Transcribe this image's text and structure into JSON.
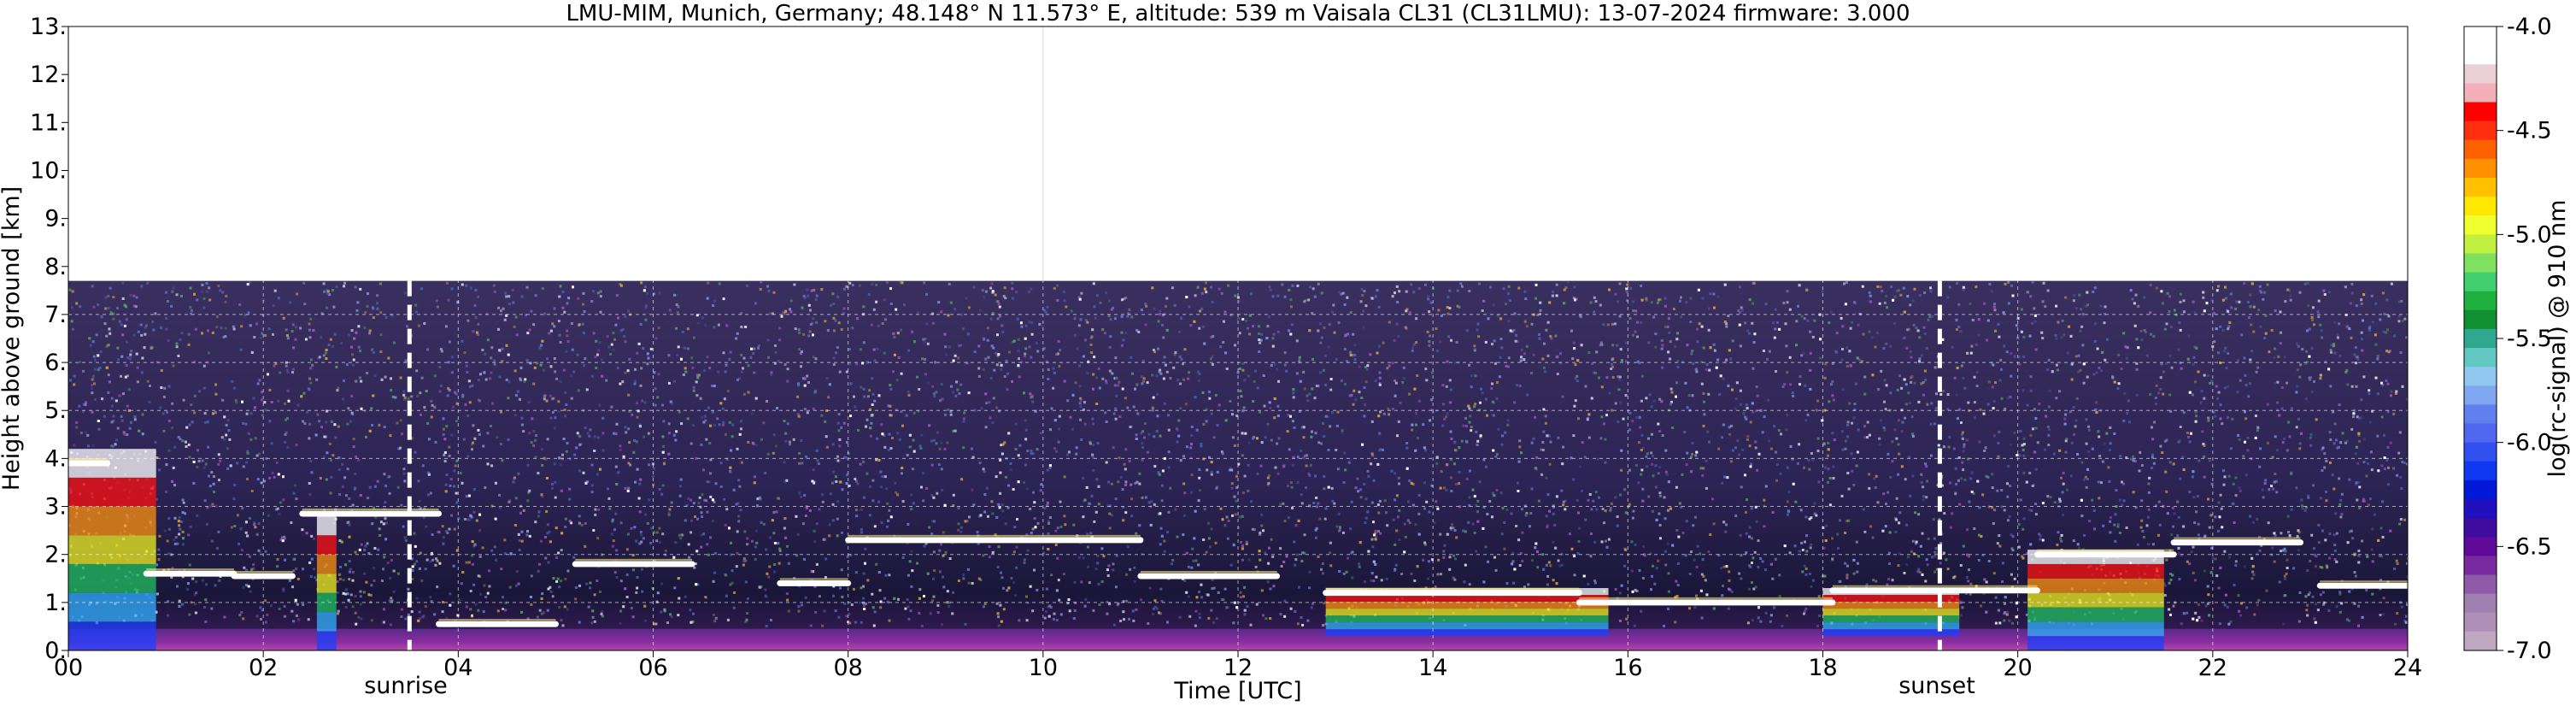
{
  "chart_data": {
    "type": "heatmap",
    "title": "LMU-MIM, Munich, Germany; 48.148° N 11.573° E, altitude: 539 m    Vaisala CL31 (CL31LMU): 13-07-2024    firmware: 3.000",
    "xlabel": "Time [UTC]",
    "ylabel": "Height above ground [km]",
    "xlim": [
      0,
      24
    ],
    "ylim": [
      0,
      13
    ],
    "x_ticks": [
      "00",
      "02",
      "04",
      "06",
      "08",
      "10",
      "12",
      "14",
      "16",
      "18",
      "20",
      "22",
      "24"
    ],
    "y_ticks": [
      "0.",
      "1.",
      "2.",
      "3.",
      "4.",
      "5.",
      "6.",
      "7.",
      "8.",
      "9.",
      "10.",
      "11.",
      "12.",
      "13."
    ],
    "grid": true,
    "data_top_km": 7.7,
    "sunrise": {
      "label": "sunrise",
      "time": 3.5
    },
    "sunset": {
      "label": "sunset",
      "time": 19.2
    },
    "colorbar": {
      "label": "log(rc-signal) @ 910 nm",
      "range": [
        -7.0,
        -4.0
      ],
      "ticks": [
        "-4.0",
        "-4.5",
        "-5.0",
        "-5.5",
        "-6.0",
        "-6.5",
        "-7.0"
      ]
    },
    "cloud_layers": [
      {
        "start": 0.0,
        "end": 0.4,
        "height": 3.9
      },
      {
        "start": 0.8,
        "end": 1.7,
        "height": 1.6
      },
      {
        "start": 1.7,
        "end": 2.3,
        "height": 1.55
      },
      {
        "start": 2.4,
        "end": 3.8,
        "height": 2.85
      },
      {
        "start": 3.8,
        "end": 5.0,
        "height": 0.55
      },
      {
        "start": 5.2,
        "end": 6.4,
        "height": 1.8
      },
      {
        "start": 7.3,
        "end": 8.0,
        "height": 1.4
      },
      {
        "start": 8.0,
        "end": 11.0,
        "height": 2.3
      },
      {
        "start": 11.0,
        "end": 12.4,
        "height": 1.55
      },
      {
        "start": 12.9,
        "end": 15.5,
        "height": 1.2
      },
      {
        "start": 15.5,
        "end": 18.1,
        "height": 1.0
      },
      {
        "start": 18.1,
        "end": 20.2,
        "height": 1.25
      },
      {
        "start": 20.2,
        "end": 21.6,
        "height": 2.0
      },
      {
        "start": 21.6,
        "end": 22.9,
        "height": 2.25
      },
      {
        "start": 23.1,
        "end": 24.0,
        "height": 1.35
      }
    ]
  }
}
